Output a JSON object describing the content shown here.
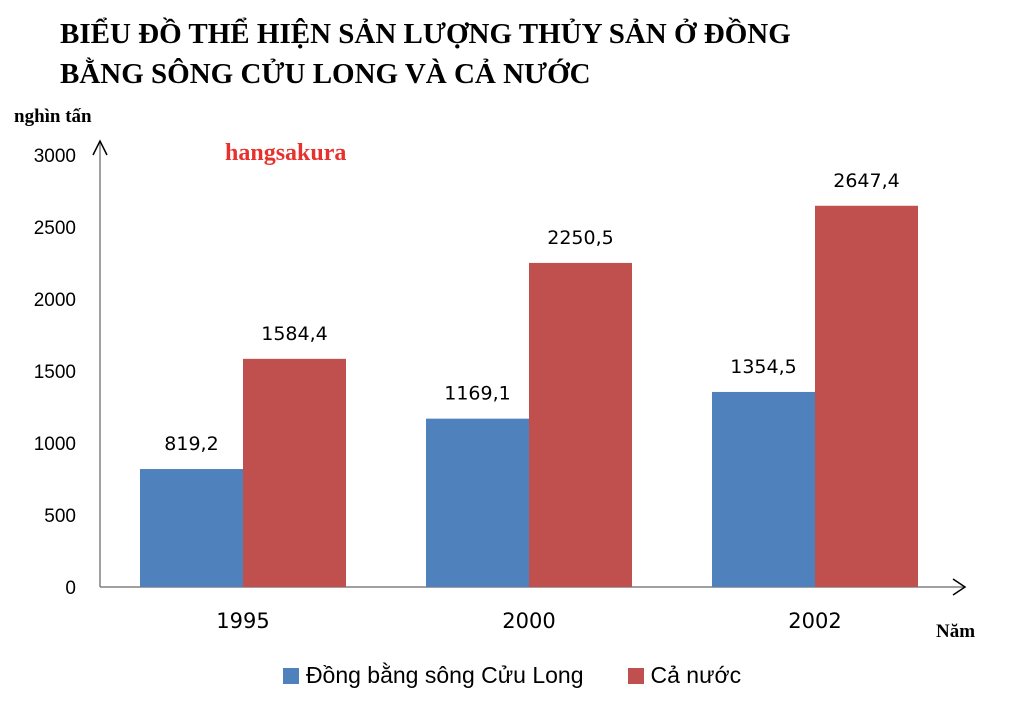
{
  "chart_data": {
    "type": "bar",
    "title": [
      "BIỂU ĐỒ THỂ HIỆN SẢN LƯỢNG THỦY SẢN Ở ĐỒNG",
      "BẰNG SÔNG CỬU LONG VÀ CẢ NƯỚC"
    ],
    "watermark": "hangsakura",
    "ylabel": "nghìn tấn",
    "xlabel": "Năm",
    "categories": [
      "1995",
      "2000",
      "2002"
    ],
    "ylim": [
      0,
      3000
    ],
    "yticks": [
      0,
      500,
      1000,
      1500,
      2000,
      2500,
      3000
    ],
    "series": [
      {
        "name": "Đồng bằng sông Cửu Long",
        "values": [
          819.2,
          1169.1,
          1354.5
        ],
        "labels": [
          "819,2",
          "1169,1",
          "1354,5"
        ],
        "color": "#4f81bd"
      },
      {
        "name": "Cả nước",
        "values": [
          1584.4,
          2250.5,
          2647.4
        ],
        "labels": [
          "1584,4",
          "2250,5",
          "2647,4"
        ],
        "color": "#c0504d"
      }
    ],
    "grid": false,
    "legend_position": "bottom"
  }
}
